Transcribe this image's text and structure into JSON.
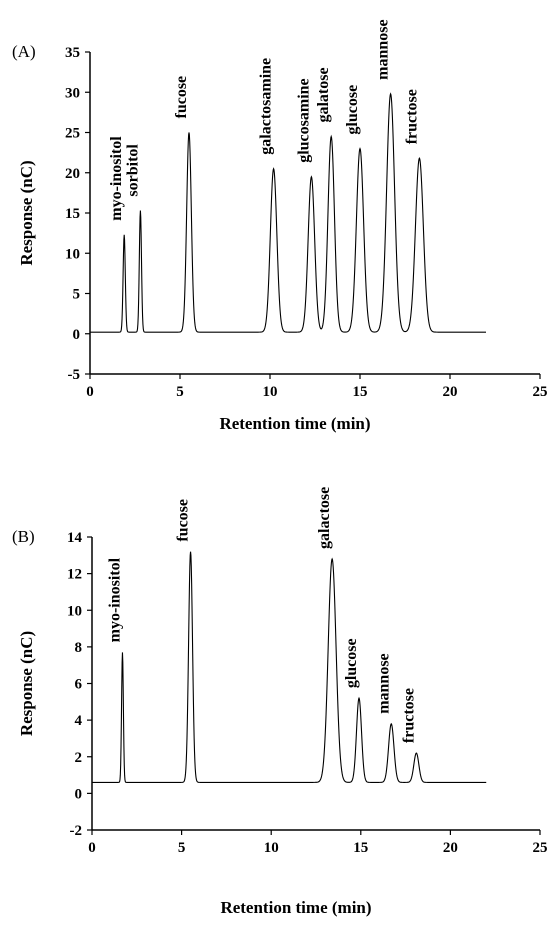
{
  "chart_data": [
    {
      "type": "line",
      "panel_label": "(A)",
      "xlabel": "Retention time (min)",
      "ylabel": "Response (nC)",
      "xlim": [
        0,
        25
      ],
      "ylim": [
        -5,
        35
      ],
      "xticks": [
        0,
        5,
        10,
        15,
        20,
        25
      ],
      "yticks": [
        -5,
        0,
        5,
        10,
        15,
        20,
        25,
        30,
        35
      ],
      "baseline": 0.2,
      "peaks": [
        {
          "name": "myo-inositol",
          "x": 1.9,
          "height": 12.3
        },
        {
          "name": "sorbitol",
          "x": 2.8,
          "height": 15.3
        },
        {
          "name": "fucose",
          "x": 5.5,
          "height": 25.0
        },
        {
          "name": "galactosamine",
          "x": 10.2,
          "height": 20.5
        },
        {
          "name": "glucosamine",
          "x": 12.3,
          "height": 19.5
        },
        {
          "name": "galatose",
          "x": 13.4,
          "height": 24.5
        },
        {
          "name": "glucose",
          "x": 15.0,
          "height": 23.0
        },
        {
          "name": "mannose",
          "x": 16.7,
          "height": 29.8
        },
        {
          "name": "fructose",
          "x": 18.3,
          "height": 21.8
        }
      ],
      "x_end": 22
    },
    {
      "type": "line",
      "panel_label": "(B)",
      "xlabel": "Retention time (min)",
      "ylabel": "Response (nC)",
      "xlim": [
        0,
        25
      ],
      "ylim": [
        -2,
        14
      ],
      "xticks": [
        0,
        5,
        10,
        15,
        20,
        25
      ],
      "yticks": [
        -2,
        0,
        2,
        4,
        6,
        8,
        10,
        12,
        14
      ],
      "baseline": 0.6,
      "peaks": [
        {
          "name": "myo-inositol",
          "x": 1.7,
          "height": 7.7
        },
        {
          "name": "fucose",
          "x": 5.5,
          "height": 13.2
        },
        {
          "name": "galactose",
          "x": 13.4,
          "height": 12.8
        },
        {
          "name": "glucose",
          "x": 14.9,
          "height": 5.2
        },
        {
          "name": "mannose",
          "x": 16.7,
          "height": 3.8
        },
        {
          "name": "fructose",
          "x": 18.1,
          "height": 2.2
        }
      ],
      "x_end": 22
    }
  ]
}
